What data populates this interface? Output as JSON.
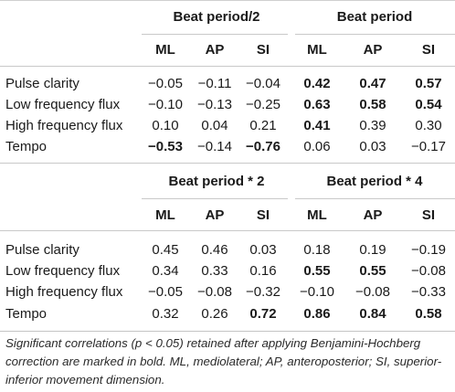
{
  "tables": [
    {
      "groups": [
        {
          "title": "Beat period/2",
          "bold": false
        },
        {
          "title": "Beat period",
          "bold": false
        }
      ],
      "columns": [
        "ML",
        "AP",
        "SI",
        "ML",
        "AP",
        "SI"
      ],
      "rows": [
        {
          "label": "Pulse clarity",
          "values": [
            "−0.05",
            "−0.11",
            "−0.04",
            "0.42",
            "0.47",
            "0.57"
          ],
          "bold": [
            false,
            false,
            false,
            true,
            true,
            true
          ]
        },
        {
          "label": "Low frequency flux",
          "values": [
            "−0.10",
            "−0.13",
            "−0.25",
            "0.63",
            "0.58",
            "0.54"
          ],
          "bold": [
            false,
            false,
            false,
            true,
            true,
            true
          ]
        },
        {
          "label": "High frequency flux",
          "values": [
            "0.10",
            "0.04",
            "0.21",
            "0.41",
            "0.39",
            "0.30"
          ],
          "bold": [
            false,
            false,
            false,
            true,
            false,
            false
          ]
        },
        {
          "label": "Tempo",
          "values": [
            "−0.53",
            "−0.14",
            "−0.76",
            "0.06",
            "0.03",
            "−0.17"
          ],
          "bold": [
            true,
            false,
            true,
            false,
            false,
            false
          ]
        }
      ]
    },
    {
      "groups": [
        {
          "title": "Beat period * 2"
        },
        {
          "title": "Beat period * 4"
        }
      ],
      "columns": [
        "ML",
        "AP",
        "SI",
        "ML",
        "AP",
        "SI"
      ],
      "rows": [
        {
          "label": "Pulse clarity",
          "values": [
            "0.45",
            "0.46",
            "0.03",
            "0.18",
            "0.19",
            "−0.19"
          ],
          "bold": [
            false,
            false,
            false,
            false,
            false,
            false
          ]
        },
        {
          "label": "Low frequency flux",
          "values": [
            "0.34",
            "0.33",
            "0.16",
            "0.55",
            "0.55",
            "−0.08"
          ],
          "bold": [
            false,
            false,
            false,
            true,
            true,
            false
          ]
        },
        {
          "label": "High frequency flux",
          "values": [
            "−0.05",
            "−0.08",
            "−0.32",
            "−0.10",
            "−0.08",
            "−0.33"
          ],
          "bold": [
            false,
            false,
            false,
            false,
            false,
            false
          ]
        },
        {
          "label": "Tempo",
          "values": [
            "0.32",
            "0.26",
            "0.72",
            "0.86",
            "0.84",
            "0.58"
          ],
          "bold": [
            false,
            false,
            true,
            true,
            true,
            true
          ]
        }
      ]
    }
  ],
  "caption": "Significant correlations (p < 0.05) retained after applying Benjamini-Hochberg correction are marked in bold. ML, mediolateral; AP, anteroposterior; SI, superior-inferior movement dimension."
}
